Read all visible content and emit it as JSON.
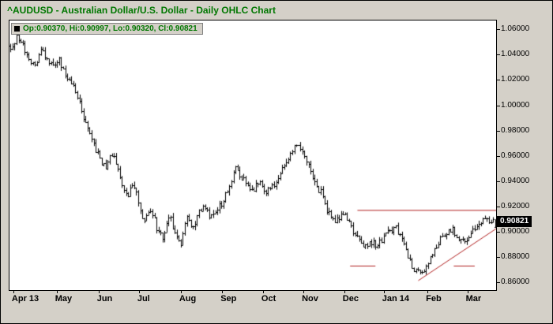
{
  "chart_data": {
    "type": "ohlc",
    "symbol": "^AUDUSD",
    "title": "^AUDUSD - Australian Dollar/U.S. Dollar - Daily OHLC Chart",
    "legend": "Op:0.90370, Hi:0.90997, Lo:0.90320, Cl:0.90821",
    "last_bar": {
      "open": 0.9037,
      "high": 0.90997,
      "low": 0.9032,
      "close": 0.90821
    },
    "last_price_label": "0.90821",
    "grid": "off",
    "legend_position": "top-left",
    "y_axis": {
      "min": 0.854,
      "max": 1.067,
      "ticks": [
        {
          "label": "1.06000",
          "value": 1.06
        },
        {
          "label": "1.04000",
          "value": 1.04
        },
        {
          "label": "1.02000",
          "value": 1.02
        },
        {
          "label": "1.00000",
          "value": 1.0
        },
        {
          "label": "0.98000",
          "value": 0.98
        },
        {
          "label": "0.96000",
          "value": 0.96
        },
        {
          "label": "0.94000",
          "value": 0.94
        },
        {
          "label": "0.92000",
          "value": 0.92
        },
        {
          "label": "0.90000",
          "value": 0.9
        },
        {
          "label": "0.88000",
          "value": 0.88
        },
        {
          "label": "0.86000",
          "value": 0.86
        }
      ]
    },
    "x_axis": {
      "labels": [
        {
          "label": "Apr 13",
          "t": 0.008
        },
        {
          "label": "May",
          "t": 0.097
        },
        {
          "label": "Jun",
          "t": 0.183
        },
        {
          "label": "Jul",
          "t": 0.266
        },
        {
          "label": "Aug",
          "t": 0.352
        },
        {
          "label": "Sep",
          "t": 0.437
        },
        {
          "label": "Oct",
          "t": 0.521
        },
        {
          "label": "Nov",
          "t": 0.604
        },
        {
          "label": "Dec",
          "t": 0.688
        },
        {
          "label": "Jan 14",
          "t": 0.769
        },
        {
          "label": "Feb",
          "t": 0.859
        },
        {
          "label": "Mar",
          "t": 0.941
        }
      ]
    },
    "bar_count": 240,
    "seed": 7,
    "noise": 0.005,
    "wick": 0.003,
    "anchors": [
      [
        0.0,
        1.046
      ],
      [
        0.012,
        1.0535
      ],
      [
        0.025,
        1.047
      ],
      [
        0.038,
        1.038
      ],
      [
        0.05,
        1.03
      ],
      [
        0.062,
        1.043
      ],
      [
        0.075,
        1.037
      ],
      [
        0.088,
        1.031
      ],
      [
        0.1,
        1.0355
      ],
      [
        0.112,
        1.025
      ],
      [
        0.125,
        1.019
      ],
      [
        0.138,
        1.008
      ],
      [
        0.15,
        0.992
      ],
      [
        0.163,
        0.976
      ],
      [
        0.175,
        0.965
      ],
      [
        0.187,
        0.956
      ],
      [
        0.197,
        0.95
      ],
      [
        0.207,
        0.963
      ],
      [
        0.218,
        0.955
      ],
      [
        0.23,
        0.938
      ],
      [
        0.242,
        0.927
      ],
      [
        0.252,
        0.939
      ],
      [
        0.263,
        0.925
      ],
      [
        0.275,
        0.908
      ],
      [
        0.29,
        0.917
      ],
      [
        0.303,
        0.902
      ],
      [
        0.315,
        0.895
      ],
      [
        0.328,
        0.914
      ],
      [
        0.34,
        0.898
      ],
      [
        0.352,
        0.89
      ],
      [
        0.363,
        0.912
      ],
      [
        0.375,
        0.903
      ],
      [
        0.388,
        0.915
      ],
      [
        0.4,
        0.92
      ],
      [
        0.412,
        0.912
      ],
      [
        0.425,
        0.918
      ],
      [
        0.437,
        0.923
      ],
      [
        0.45,
        0.935
      ],
      [
        0.463,
        0.951
      ],
      [
        0.475,
        0.944
      ],
      [
        0.488,
        0.939
      ],
      [
        0.5,
        0.933
      ],
      [
        0.512,
        0.94
      ],
      [
        0.525,
        0.931
      ],
      [
        0.538,
        0.935
      ],
      [
        0.55,
        0.942
      ],
      [
        0.563,
        0.953
      ],
      [
        0.578,
        0.962
      ],
      [
        0.592,
        0.972
      ],
      [
        0.604,
        0.964
      ],
      [
        0.618,
        0.95
      ],
      [
        0.63,
        0.936
      ],
      [
        0.643,
        0.93
      ],
      [
        0.655,
        0.915
      ],
      [
        0.668,
        0.908
      ],
      [
        0.68,
        0.913
      ],
      [
        0.69,
        0.915
      ],
      [
        0.703,
        0.904
      ],
      [
        0.716,
        0.895
      ],
      [
        0.73,
        0.887
      ],
      [
        0.742,
        0.893
      ],
      [
        0.755,
        0.89
      ],
      [
        0.769,
        0.896
      ],
      [
        0.782,
        0.901
      ],
      [
        0.795,
        0.905
      ],
      [
        0.808,
        0.892
      ],
      [
        0.82,
        0.881
      ],
      [
        0.833,
        0.87
      ],
      [
        0.846,
        0.866
      ],
      [
        0.859,
        0.873
      ],
      [
        0.872,
        0.883
      ],
      [
        0.885,
        0.893
      ],
      [
        0.898,
        0.9
      ],
      [
        0.91,
        0.903
      ],
      [
        0.922,
        0.897
      ],
      [
        0.933,
        0.892
      ],
      [
        0.944,
        0.896
      ],
      [
        0.956,
        0.902
      ],
      [
        0.968,
        0.906
      ],
      [
        0.98,
        0.91
      ],
      [
        1.0,
        0.908
      ]
    ],
    "annotations": [
      {
        "name": "resistance-line",
        "x1": 0.715,
        "p1": 0.917,
        "x2": 1.0,
        "p2": 0.917
      },
      {
        "name": "ascending-trendline",
        "x1": 0.84,
        "p1": 0.8615,
        "x2": 1.0,
        "p2": 0.9025
      },
      {
        "name": "support-mark-left",
        "x1": 0.7,
        "p1": 0.873,
        "x2": 0.752,
        "p2": 0.873
      },
      {
        "name": "support-mark-right",
        "x1": 0.913,
        "p1": 0.873,
        "x2": 0.956,
        "p2": 0.873
      }
    ],
    "colors": {
      "bar": "#000000",
      "annotation": "#b22222",
      "title": "#007700",
      "background": "#d4d0c8",
      "plot_bg": "#ffffff",
      "price_label_bg": "#000000",
      "price_label_fg": "#ffffff"
    }
  }
}
